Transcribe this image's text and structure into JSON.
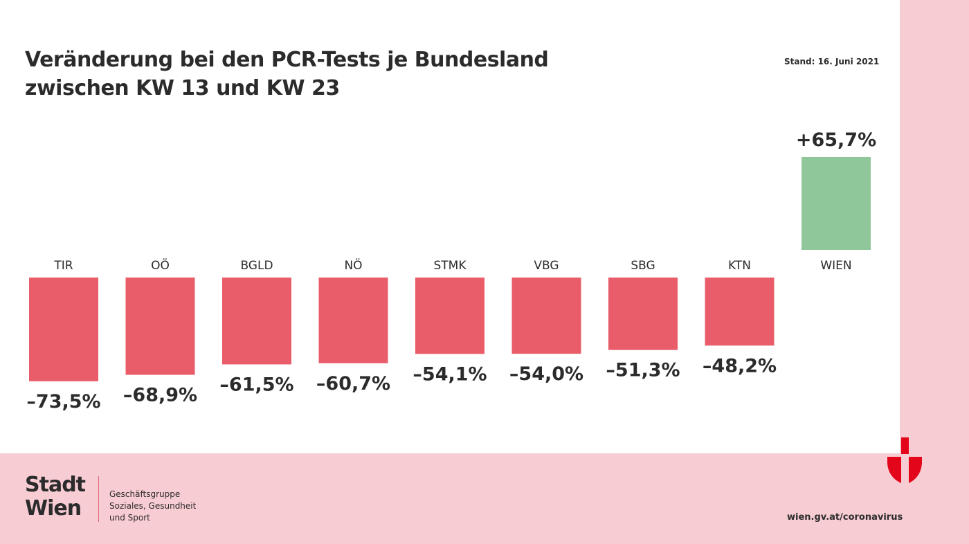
{
  "chart_data": {
    "type": "bar",
    "title": "Veränderung bei den PCR-Tests je Bundesland zwischen KW 13 und KW 23",
    "title_lines": [
      "Veränderung bei den PCR-Tests je Bundesland",
      "zwischen KW 13 und KW 23"
    ],
    "categories": [
      "TIR",
      "OÖ",
      "BGLD",
      "NÖ",
      "STMK",
      "VBG",
      "SBG",
      "KTN",
      "WIEN"
    ],
    "values": [
      -73.5,
      -68.9,
      -61.5,
      -60.7,
      -54.1,
      -54.0,
      -51.3,
      -48.2,
      65.7
    ],
    "value_labels": [
      "–73,5%",
      "–68,9%",
      "–61,5%",
      "–60,7%",
      "–54,1%",
      "–54,0%",
      "–51,3%",
      "–48,2%",
      "+65,7%"
    ],
    "unit": "%",
    "grid": false,
    "colors": {
      "negative": "#e95c69",
      "positive": "#8fc79a"
    }
  },
  "stand": "Stand: 16. Juni 2021",
  "footer": {
    "logo_lines": [
      "Stadt",
      "Wien"
    ],
    "department_lines": [
      "Geschäftsgruppe",
      "Soziales, Gesundheit",
      "und Sport"
    ],
    "url": "wien.gv.at/coronavirus"
  },
  "colors": {
    "pink": "#f8ccd3",
    "brand_red": "#e3061a"
  }
}
